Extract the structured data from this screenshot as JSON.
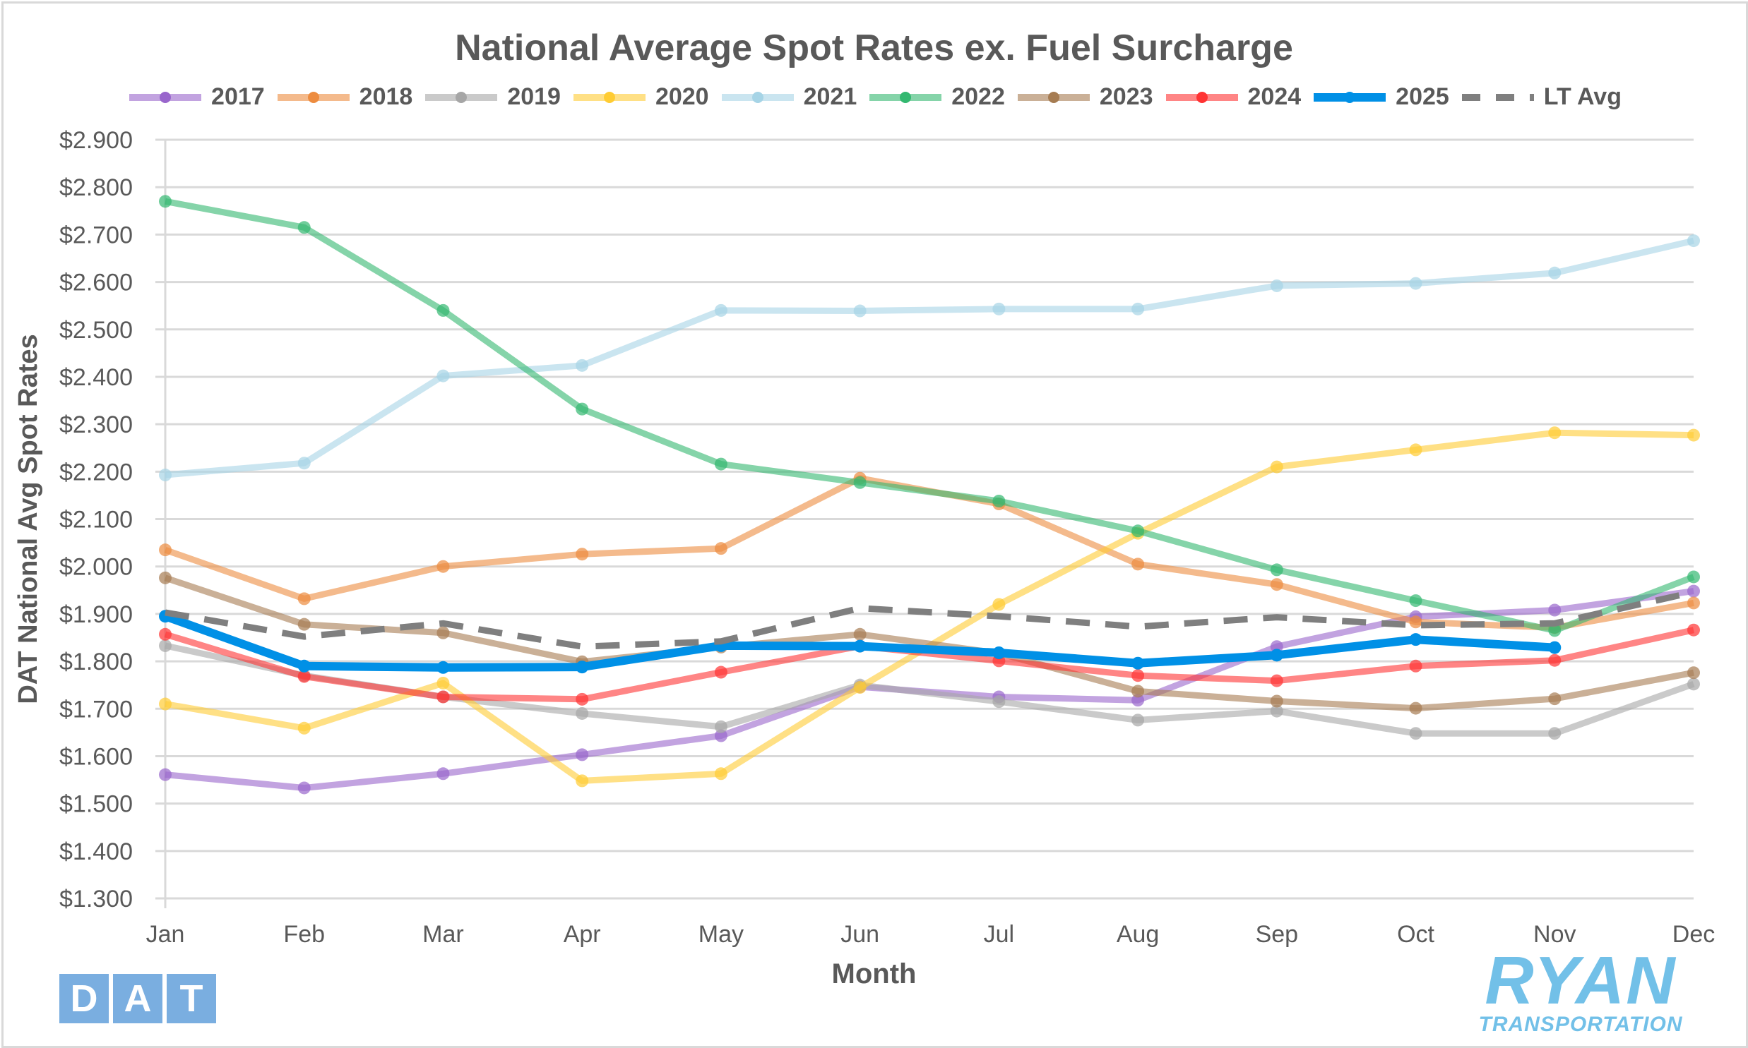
{
  "chart_data": {
    "type": "line",
    "title": "National Average Spot Rates ex. Fuel Surcharge",
    "xlabel": "Month",
    "ylabel": "DAT National Avg Spot Rates",
    "ylim": [
      1.3,
      2.9
    ],
    "ytick_step": 0.1,
    "yticks": [
      "$1.300",
      "$1.400",
      "$1.500",
      "$1.600",
      "$1.700",
      "$1.800",
      "$1.900",
      "$2.000",
      "$2.100",
      "$2.200",
      "$2.300",
      "$2.400",
      "$2.500",
      "$2.600",
      "$2.700",
      "$2.800",
      "$2.900"
    ],
    "grid": true,
    "legend_position": "top",
    "categories": [
      "Jan",
      "Feb",
      "Mar",
      "Apr",
      "May",
      "Jun",
      "Jul",
      "Aug",
      "Sep",
      "Oct",
      "Nov",
      "Dec"
    ],
    "series": [
      {
        "name": "2017",
        "color": "#9966cc",
        "values": [
          1.561,
          1.533,
          1.563,
          1.603,
          1.643,
          1.746,
          1.725,
          1.718,
          1.831,
          1.894,
          1.908,
          1.948
        ]
      },
      {
        "name": "2018",
        "color": "#ed8c3f",
        "values": [
          2.035,
          1.932,
          2.0,
          2.026,
          2.038,
          2.186,
          2.132,
          2.005,
          1.962,
          1.883,
          1.871,
          1.923
        ]
      },
      {
        "name": "2019",
        "color": "#a6a6a6",
        "values": [
          1.833,
          1.77,
          1.725,
          1.69,
          1.662,
          1.75,
          1.715,
          1.676,
          1.695,
          1.648,
          1.648,
          1.752
        ]
      },
      {
        "name": "2020",
        "color": "#ffcc33",
        "values": [
          1.71,
          1.659,
          1.754,
          1.548,
          1.563,
          1.745,
          1.92,
          2.07,
          2.21,
          2.246,
          2.282,
          2.277
        ]
      },
      {
        "name": "2021",
        "color": "#a6d4e6",
        "values": [
          2.193,
          2.218,
          2.402,
          2.424,
          2.54,
          2.539,
          2.543,
          2.543,
          2.592,
          2.597,
          2.619,
          2.687
        ]
      },
      {
        "name": "2022",
        "color": "#33b870",
        "values": [
          2.77,
          2.715,
          2.54,
          2.332,
          2.216,
          2.177,
          2.138,
          2.075,
          1.993,
          1.928,
          1.865,
          1.978
        ]
      },
      {
        "name": "2023",
        "color": "#a67c52",
        "values": [
          1.976,
          1.878,
          1.86,
          1.799,
          1.83,
          1.857,
          1.817,
          1.737,
          1.716,
          1.701,
          1.721,
          1.776
        ]
      },
      {
        "name": "2024",
        "color": "#ff3333",
        "values": [
          1.857,
          1.768,
          1.725,
          1.72,
          1.777,
          1.832,
          1.801,
          1.77,
          1.759,
          1.79,
          1.802,
          1.866
        ]
      },
      {
        "name": "2025",
        "color": "#0090e6",
        "values": [
          1.895,
          1.79,
          1.787,
          1.788,
          1.833,
          1.832,
          1.818,
          1.796,
          1.813,
          1.846,
          1.829,
          null
        ]
      },
      {
        "name": "LT Avg",
        "color": "#7f7f7f",
        "dashed": true,
        "values": [
          1.903,
          1.852,
          1.88,
          1.831,
          1.842,
          1.912,
          1.895,
          1.873,
          1.893,
          1.876,
          1.88,
          1.946
        ]
      }
    ]
  },
  "logos": {
    "left": {
      "letters": [
        "D",
        "A",
        "T"
      ]
    },
    "right": {
      "main": "RYAN",
      "sub": "TRANSPORTATION"
    }
  }
}
